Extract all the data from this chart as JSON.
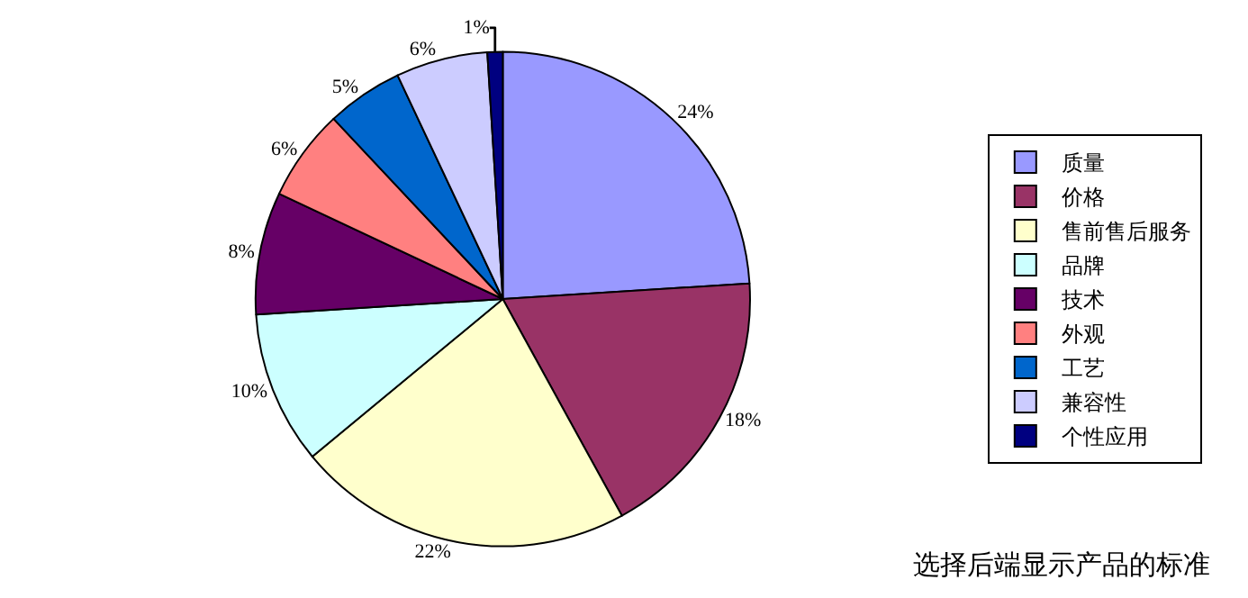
{
  "chart_data": {
    "type": "pie",
    "title": "选择后端显示产品的标准",
    "categories": [
      "质量",
      "价格",
      "售前售后服务",
      "品牌",
      "技术",
      "外观",
      "工艺",
      "兼容性",
      "个性应用"
    ],
    "values": [
      24,
      18,
      22,
      10,
      8,
      6,
      5,
      6,
      1
    ],
    "value_labels": [
      "24%",
      "18%",
      "22%",
      "10%",
      "8%",
      "6%",
      "5%",
      "6%",
      "1%"
    ],
    "colors": [
      "#9999ff",
      "#993366",
      "#ffffcc",
      "#ccffff",
      "#660066",
      "#ff8080",
      "#0066cc",
      "#ccccff",
      "#000080"
    ],
    "legend": "right"
  }
}
